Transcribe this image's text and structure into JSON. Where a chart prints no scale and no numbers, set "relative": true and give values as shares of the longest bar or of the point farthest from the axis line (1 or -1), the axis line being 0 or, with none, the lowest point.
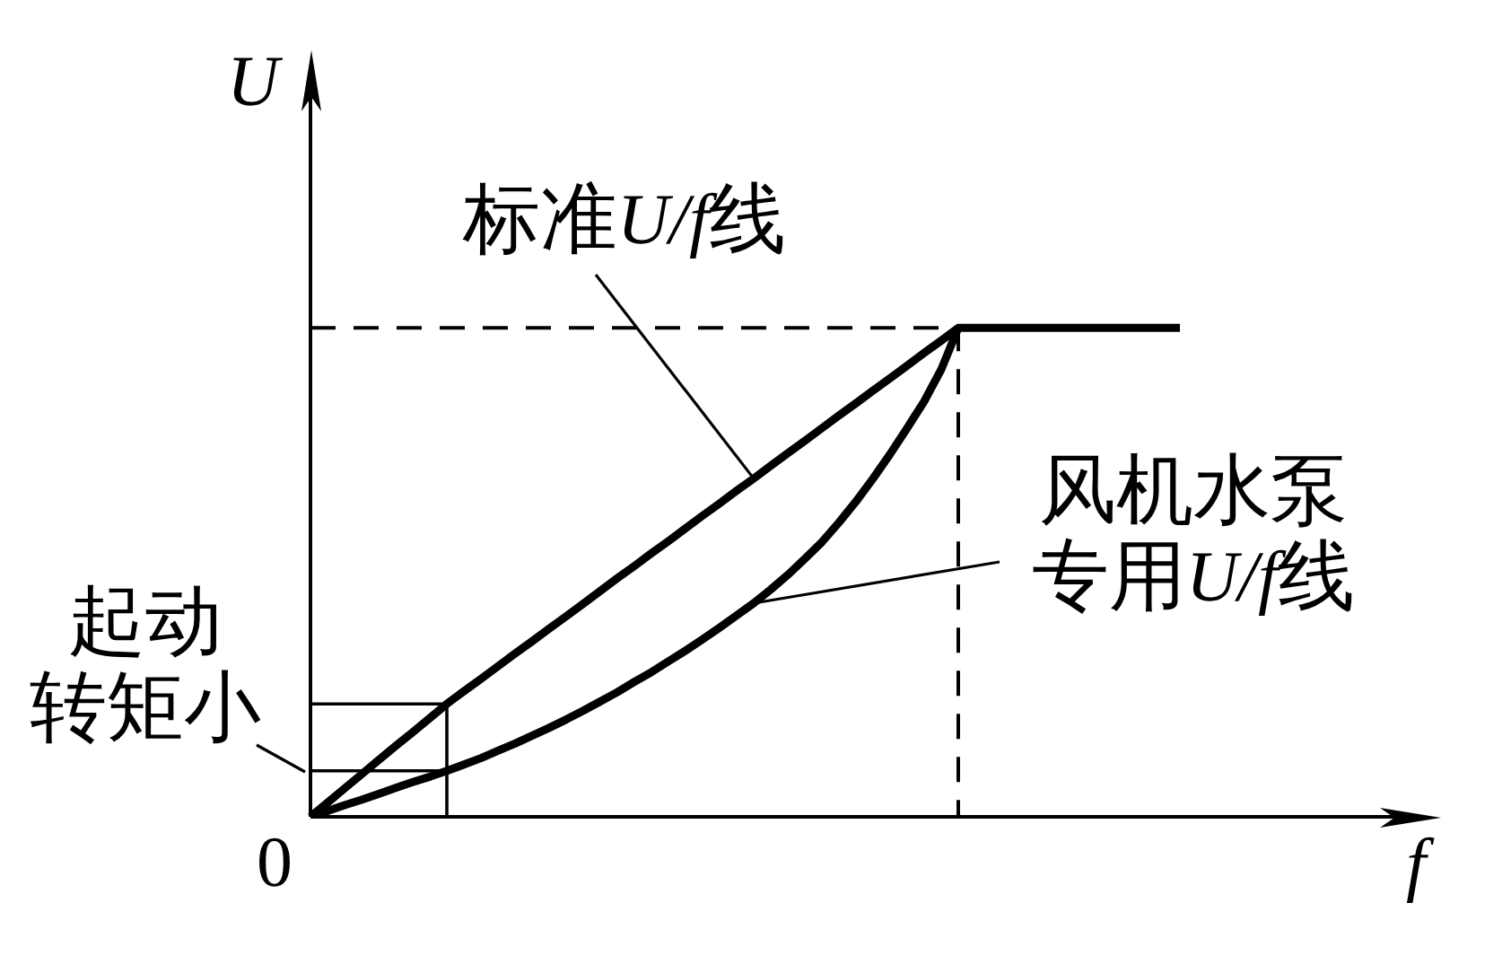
{
  "chart_data": {
    "type": "line",
    "relative": true,
    "marker": "none",
    "xlabel": "f",
    "ylabel": "U",
    "annotations": [
      "0",
      "起动转矩小"
    ],
    "categories": [
      null,
      null,
      null,
      null,
      null,
      null,
      null,
      null,
      null,
      null,
      null,
      null,
      null,
      null,
      null,
      null,
      null,
      null,
      null,
      null,
      null,
      null,
      null,
      null,
      null,
      null,
      null,
      null,
      null,
      null,
      null,
      null,
      null,
      null,
      null,
      null,
      null,
      null,
      null,
      null,
      null,
      null,
      null,
      null,
      null,
      null,
      null,
      null,
      null,
      null,
      null,
      null,
      null,
      null,
      null,
      null,
      null,
      null,
      null,
      null,
      null,
      null,
      null,
      null,
      null,
      null,
      null
    ],
    "series": [
      {
        "name": "标准U/f线",
        "color": "#000000",
        "values": [
          0,
          0.029,
          0.058,
          0.087,
          0.116,
          0.145,
          0.173,
          0.202,
          0.231,
          0.257,
          0.282,
          0.308,
          0.334,
          0.359,
          0.385,
          0.41,
          0.436,
          0.462,
          0.488,
          0.513,
          0.539,
          0.564,
          0.59,
          0.616,
          0.641,
          0.667,
          0.692,
          0.718,
          0.744,
          0.769,
          0.795,
          0.821,
          0.846,
          0.872,
          0.897,
          0.923,
          0.949,
          0.974,
          1,
          1,
          1,
          1,
          1,
          1,
          1,
          1,
          1,
          1,
          1,
          1,
          1,
          1,
          null,
          null,
          null,
          null,
          null,
          null,
          null,
          null,
          null,
          null,
          null,
          null,
          null,
          null,
          null
        ]
      },
      {
        "name": "风机水泵专用U/f线",
        "color": "#000000",
        "values": [
          0,
          0.012,
          0.024,
          0.035,
          0.047,
          0.059,
          0.071,
          0.082,
          0.094,
          0.107,
          0.12,
          0.135,
          0.15,
          0.166,
          0.182,
          0.199,
          0.217,
          0.236,
          0.255,
          0.276,
          0.296,
          0.318,
          0.34,
          0.363,
          0.387,
          0.412,
          0.437,
          0.465,
          0.495,
          0.528,
          0.562,
          0.602,
          0.645,
          0.692,
          0.742,
          0.795,
          0.85,
          0.915,
          1,
          null,
          null,
          null,
          null,
          null,
          null,
          null,
          null,
          null,
          null,
          null,
          null,
          null,
          null,
          null,
          null,
          null,
          null,
          null,
          null,
          null,
          null,
          null,
          null,
          null,
          null,
          null,
          null
        ]
      },
      {
        "type": "step",
        "color": "#000000",
        "line_style": "dashed",
        "values": [
          1,
          1,
          1,
          1,
          1,
          1,
          1,
          1,
          1,
          1,
          1,
          1,
          1,
          1,
          1,
          1,
          1,
          1,
          1,
          1,
          1,
          1,
          1,
          1,
          1,
          1,
          1,
          1,
          1,
          1,
          1,
          1,
          1,
          1,
          1,
          1,
          1,
          1,
          0,
          null,
          null,
          null,
          null,
          null,
          null,
          null,
          null,
          null,
          null,
          null,
          null,
          null,
          null,
          null,
          null,
          null,
          null,
          null,
          null,
          null,
          null,
          null,
          null,
          null,
          null,
          null,
          null
        ]
      },
      {
        "type": "step",
        "color": "#000000",
        "values": [
          0.231,
          0.231,
          0.231,
          0.231,
          0.231,
          0.231,
          0.231,
          0.231,
          0,
          null,
          null,
          null,
          null,
          null,
          null,
          null,
          null,
          null,
          null,
          null,
          null,
          null,
          null,
          null,
          null,
          null,
          null,
          null,
          null,
          null,
          null,
          null,
          null,
          null,
          null,
          null,
          null,
          null,
          null,
          null,
          null,
          null,
          null,
          null,
          null,
          null,
          null,
          null,
          null,
          null,
          null,
          null,
          null,
          null,
          null,
          null,
          null,
          null,
          null,
          null,
          null,
          null,
          null,
          null,
          null,
          null,
          null
        ]
      },
      {
        "type": "line",
        "color": "#000000",
        "values": [
          0.094,
          0.094,
          0.094,
          0.094,
          0.094,
          0.094,
          0.094,
          0.094,
          0.094,
          null,
          null,
          null,
          null,
          null,
          null,
          null,
          null,
          null,
          null,
          null,
          null,
          null,
          null,
          null,
          null,
          null,
          null,
          null,
          null,
          null,
          null,
          null,
          null,
          null,
          null,
          null,
          null,
          null,
          null,
          null,
          null,
          null,
          null,
          null,
          null,
          null,
          null,
          null,
          null,
          null,
          null,
          null,
          null,
          null,
          null,
          null,
          null,
          null,
          null,
          null,
          null,
          null,
          null,
          null,
          null,
          null,
          null
        ]
      }
    ]
  }
}
